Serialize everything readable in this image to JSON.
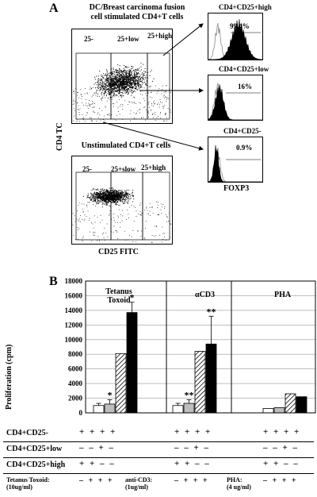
{
  "panel_a": {
    "letter": "A",
    "top_title_line1": "DC/Breast carcinoma fusion",
    "top_title_line2": "cell stimulated CD4+T cells",
    "bottom_title": "Unstimulated CD4+T cells",
    "y_axis": "CD4 TC",
    "x_axis": "CD25 FITC",
    "gates": {
      "neg": "25-",
      "low": "25+low",
      "high": "25+high"
    },
    "bottom_gates": {
      "neg": "25-",
      "low": "25+slow",
      "high": "25+high"
    },
    "histograms": [
      {
        "title": "CD4+CD25+high",
        "pct": "99.4%"
      },
      {
        "title": "CD4+CD25+low",
        "pct": "16%"
      },
      {
        "title": "CD4+CD25-",
        "pct": "0.9%"
      }
    ],
    "hist_x_axis": "FOXP3"
  },
  "panel_b": {
    "letter": "B",
    "y_axis": "Proliferation (cpm)",
    "group_labels": [
      "Tetanus Toxoid",
      "αCD3",
      "PHA"
    ],
    "table_rows": [
      {
        "label": "CD4+CD25-",
        "tt": "+ + + +",
        "cd3": "+ + + +",
        "pha": "+ + + +"
      },
      {
        "label": "CD4+CD25+low",
        "tt": "– – + –",
        "cd3": "– – + –",
        "pha": "– – + –"
      },
      {
        "label": "CD4+CD25+high",
        "tt": "+ + – –",
        "cd3": "+ + – –",
        "pha": "+ + – –"
      }
    ],
    "footer": {
      "tt_label": "Tetanus Toxoid:",
      "tt_conc": "(10ug/ml)",
      "tt_sym": "– + + +",
      "cd3_label": "anti-CD3:",
      "cd3_conc": "(1ug/ml)",
      "cd3_sym": "– + + +",
      "pha_label": "PHA:",
      "pha_conc": "(4 ug/ml)",
      "pha_sym": "– + + +"
    }
  },
  "chart_data": {
    "type": "bar",
    "ylabel": "Proliferation (cpm)",
    "ylim": [
      0,
      18000
    ],
    "yticks": [
      0,
      2000,
      4000,
      6000,
      8000,
      10000,
      12000,
      14000,
      16000,
      18000
    ],
    "groups": [
      "Tetanus Toxoid",
      "αCD3",
      "PHA"
    ],
    "bars": [
      {
        "group": 0,
        "values": [
          1000,
          1200,
          8100,
          13700
        ],
        "errors": [
          300,
          600,
          0,
          1400
        ],
        "sig": [
          "",
          "*",
          "",
          "*"
        ]
      },
      {
        "group": 1,
        "values": [
          1000,
          1300,
          8400,
          9400
        ],
        "errors": [
          300,
          500,
          0,
          3800
        ],
        "sig": [
          "",
          "**",
          "",
          "**"
        ]
      },
      {
        "group": 2,
        "values": [
          600,
          700,
          2600,
          2200
        ],
        "errors": [
          0,
          0,
          0,
          0
        ],
        "sig": [
          "",
          "",
          "",
          ""
        ]
      }
    ],
    "fills": [
      "#ffffff",
      "#bdbdbd",
      "hatch",
      "#000000"
    ]
  }
}
